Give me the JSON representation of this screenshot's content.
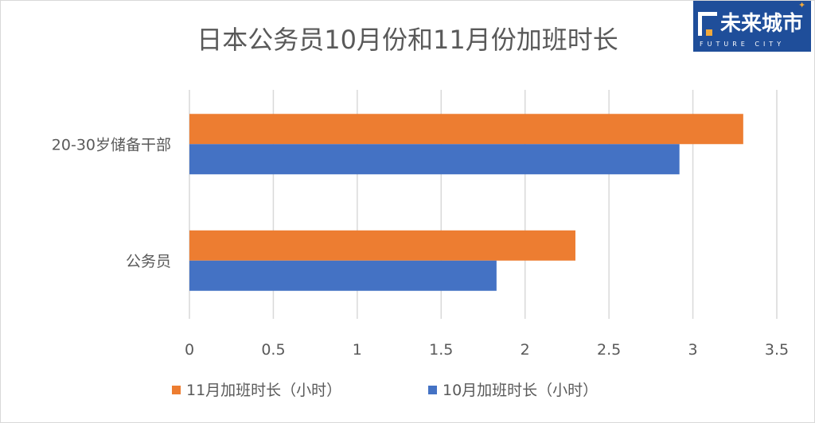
{
  "logo": {
    "text_zh": "未来城市",
    "text_en": "FUTURE CITY"
  },
  "chart_data": {
    "type": "bar",
    "orientation": "horizontal",
    "title": "日本公务员10月份和11月份加班时长",
    "categories": [
      "20-30岁储备干部",
      "公务员"
    ],
    "series": [
      {
        "name": "11月加班时长（小时）",
        "values": [
          3.3,
          2.3
        ],
        "color": "#ed7d31"
      },
      {
        "name": "10月加班时长（小时）",
        "values": [
          2.92,
          1.83
        ],
        "color": "#4472c4"
      }
    ],
    "xlim": [
      0,
      3.5
    ],
    "xticks": [
      "0",
      "0.5",
      "1",
      "1.5",
      "2",
      "2.5",
      "3",
      "3.5"
    ],
    "grid": true,
    "legend": "bottom"
  }
}
